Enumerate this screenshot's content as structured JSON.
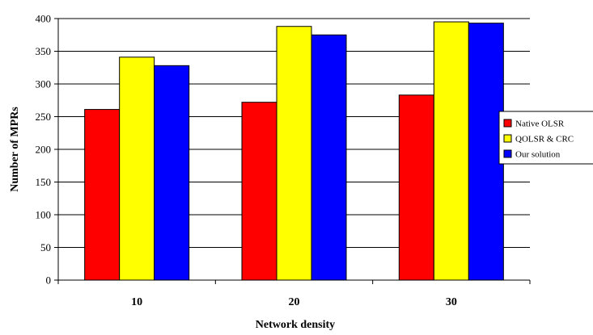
{
  "chart_data": {
    "type": "bar",
    "title": "",
    "xlabel": "Network density",
    "ylabel": "Number of MPRs",
    "categories": [
      "10",
      "20",
      "30"
    ],
    "ylim": [
      0,
      400
    ],
    "yticks": [
      0,
      50,
      100,
      150,
      200,
      250,
      300,
      350,
      400
    ],
    "grid": true,
    "legend_position": "right",
    "series": [
      {
        "name": "Native OLSR",
        "color": "#ff0000",
        "values": [
          261,
          272,
          283
        ]
      },
      {
        "name": "QOLSR & CRC",
        "color": "#ffff00",
        "values": [
          341,
          388,
          395
        ]
      },
      {
        "name": "Our solution",
        "color": "#0000ff",
        "values": [
          328,
          375,
          393
        ]
      }
    ]
  }
}
